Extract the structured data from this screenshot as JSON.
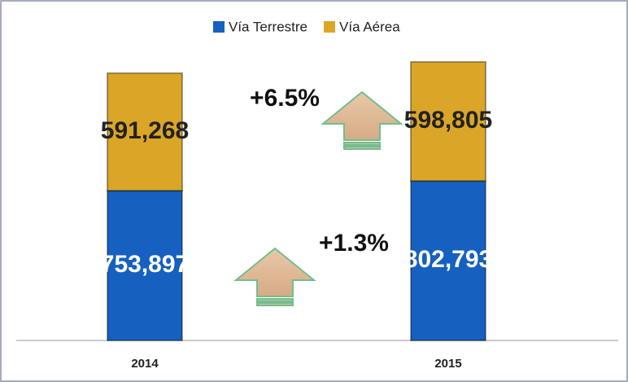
{
  "chart_data": {
    "type": "stacked_bar",
    "categories": [
      "2014",
      "2015"
    ],
    "series": [
      {
        "name": "Vía Terrestre",
        "color": "#1660c0",
        "values": [
          753897,
          802793
        ],
        "value_labels": [
          "753,897",
          "802,793"
        ]
      },
      {
        "name": "Vía Aérea",
        "color": "#dba628",
        "values": [
          591268,
          598805
        ],
        "value_labels": [
          "591,268",
          "598,805"
        ]
      }
    ],
    "annotations": [
      "+6.5%",
      "+1.3%"
    ]
  }
}
